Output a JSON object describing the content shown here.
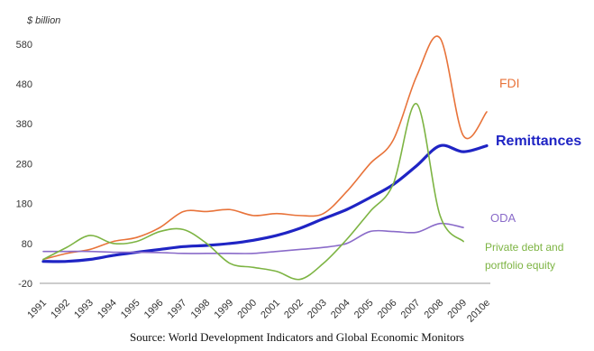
{
  "chart_data": {
    "type": "line",
    "ylabel": "$ billion",
    "ylim": [
      -20,
      600
    ],
    "yticks": [
      -20,
      80,
      180,
      280,
      380,
      480,
      580
    ],
    "x": [
      "1991",
      "1992",
      "1993",
      "1994",
      "1995",
      "1996",
      "1997",
      "1998",
      "1999",
      "2000",
      "2001",
      "2002",
      "2003",
      "2004",
      "2005",
      "2006",
      "2007",
      "2008",
      "2009",
      "2010e"
    ],
    "series": [
      {
        "name": "FDI",
        "color": "#E8733A",
        "bold": false,
        "values": [
          40,
          55,
          65,
          85,
          95,
          120,
          160,
          160,
          165,
          150,
          155,
          150,
          155,
          210,
          280,
          340,
          500,
          595,
          350,
          410
        ]
      },
      {
        "name": "Remittances",
        "color": "#1F24C4",
        "bold": true,
        "values": [
          35,
          35,
          40,
          50,
          58,
          65,
          72,
          75,
          80,
          88,
          100,
          118,
          142,
          165,
          195,
          228,
          275,
          325,
          310,
          325
        ]
      },
      {
        "name": "ODA",
        "color": "#8A6BC9",
        "bold": false,
        "values": [
          60,
          60,
          60,
          58,
          58,
          57,
          55,
          55,
          55,
          55,
          60,
          65,
          70,
          80,
          110,
          110,
          108,
          130,
          120,
          null
        ]
      },
      {
        "name": "Private debt and\nportfolio equity",
        "color": "#7DB443",
        "bold": false,
        "values": [
          40,
          70,
          100,
          80,
          85,
          110,
          115,
          80,
          30,
          20,
          10,
          -10,
          30,
          90,
          160,
          230,
          430,
          150,
          85,
          null
        ]
      }
    ]
  },
  "caption": "Source: World Development Indicators and Global Economic Monitors"
}
